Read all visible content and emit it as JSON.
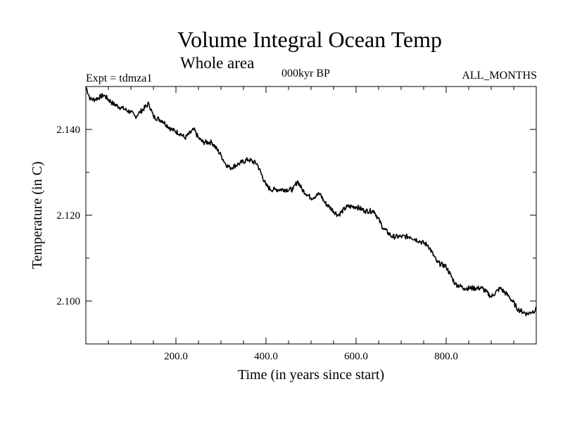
{
  "header": {
    "title": "Volume Integral Ocean Temp",
    "subtitle": "Whole area",
    "expt": "Expt = tdmza1",
    "epoch": "000kyr BP",
    "months": "ALL_MONTHS"
  },
  "chart_data": {
    "type": "line",
    "title": "Volume Integral Ocean Temp",
    "subtitle": "Whole area",
    "xlabel": "Time (in years since start)",
    "ylabel": "Temperature (in C)",
    "xlim": [
      0,
      1000
    ],
    "ylim": [
      2.09,
      2.15
    ],
    "x_ticks": [
      200,
      400,
      600,
      800
    ],
    "x_tick_labels": [
      "200.0",
      "400.0",
      "600.0",
      "800.0"
    ],
    "y_ticks": [
      2.1,
      2.12,
      2.14
    ],
    "y_tick_labels": [
      "2.100",
      "2.120",
      "2.140"
    ],
    "grid": false,
    "series": [
      {
        "name": "Volume Integral Ocean Temp",
        "color": "#000000",
        "x": [
          0,
          10,
          20,
          40,
          60,
          80,
          100,
          110,
          120,
          140,
          150,
          170,
          190,
          210,
          220,
          240,
          250,
          260,
          280,
          300,
          310,
          320,
          340,
          360,
          380,
          400,
          410,
          420,
          440,
          460,
          470,
          480,
          500,
          520,
          530,
          540,
          560,
          580,
          600,
          620,
          640,
          660,
          680,
          700,
          720,
          740,
          760,
          780,
          800,
          820,
          840,
          860,
          880,
          900,
          920,
          940,
          960,
          980,
          1000
        ],
        "values": [
          2.15,
          2.147,
          2.147,
          2.148,
          2.146,
          2.145,
          2.144,
          2.143,
          2.144,
          2.146,
          2.143,
          2.142,
          2.14,
          2.139,
          2.138,
          2.14,
          2.138,
          2.137,
          2.137,
          2.134,
          2.132,
          2.131,
          2.132,
          2.133,
          2.132,
          2.127,
          2.126,
          2.126,
          2.126,
          2.126,
          2.128,
          2.126,
          2.124,
          2.125,
          2.123,
          2.122,
          2.12,
          2.122,
          2.122,
          2.121,
          2.121,
          2.117,
          2.115,
          2.115,
          2.115,
          2.114,
          2.113,
          2.109,
          2.108,
          2.104,
          2.103,
          2.103,
          2.103,
          2.101,
          2.103,
          2.101,
          2.098,
          2.097,
          2.098
        ]
      }
    ]
  }
}
